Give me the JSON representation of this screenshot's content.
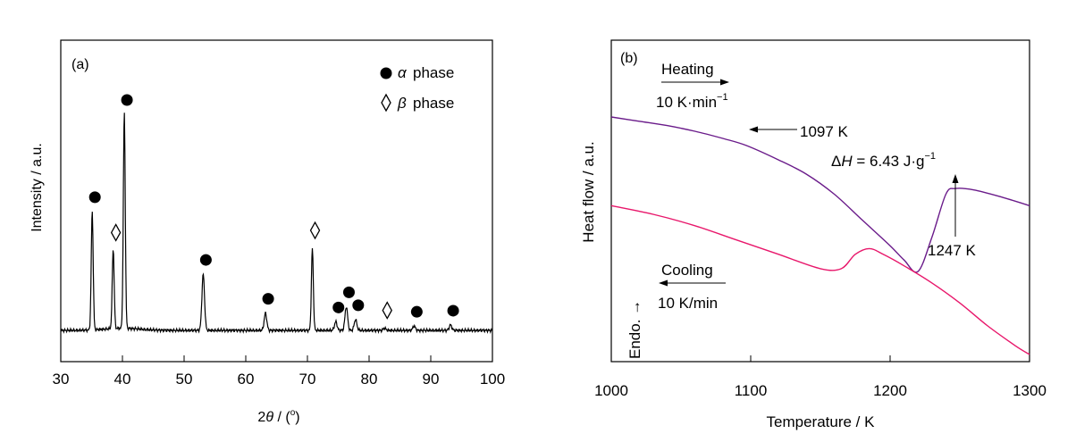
{
  "chart_data": [
    {
      "type": "line",
      "panel_label": "(a)",
      "xlabel_pre": "2",
      "xlabel_theta": "θ",
      "xlabel_post": " / (",
      "xlabel_deg": "o",
      "xlabel_close": ")",
      "ylabel": "Intensity / a.u.",
      "xlim": [
        30,
        100
      ],
      "xticks": [
        "30",
        "40",
        "50",
        "60",
        "70",
        "80",
        "90",
        "100"
      ],
      "yticks_labeled": false,
      "legend": [
        {
          "marker": "filled-circle",
          "symbol": "α",
          "text": "phase"
        },
        {
          "marker": "open-diamond",
          "symbol": "β",
          "text": "phase"
        }
      ],
      "series": [
        {
          "color": "#000000",
          "peaks": [
            {
              "x": 35.1,
              "height": 0.55,
              "phase": "alpha"
            },
            {
              "x": 38.5,
              "height": 0.37,
              "phase": "beta"
            },
            {
              "x": 40.3,
              "height": 1.0,
              "phase": "alpha"
            },
            {
              "x": 53.1,
              "height": 0.26,
              "phase": "alpha"
            },
            {
              "x": 63.2,
              "height": 0.08,
              "phase": "alpha"
            },
            {
              "x": 70.8,
              "height": 0.38,
              "phase": "beta"
            },
            {
              "x": 74.6,
              "height": 0.04,
              "phase": "alpha"
            },
            {
              "x": 76.3,
              "height": 0.11,
              "phase": "alpha"
            },
            {
              "x": 77.8,
              "height": 0.05,
              "phase": "alpha"
            },
            {
              "x": 82.5,
              "height": 0.01,
              "phase": "beta"
            },
            {
              "x": 87.3,
              "height": 0.02,
              "phase": "alpha"
            },
            {
              "x": 93.2,
              "height": 0.025,
              "phase": "alpha"
            }
          ]
        }
      ]
    },
    {
      "type": "line",
      "panel_label": "(b)",
      "xlabel": "Temperature / K",
      "ylabel": "Heat flow / a.u.",
      "xlim": [
        1000,
        1300
      ],
      "xticks": [
        "1000",
        "1100",
        "1200",
        "1300"
      ],
      "yticks_labeled": false,
      "series": [
        {
          "name": "Heating",
          "color": "#6a1b8a",
          "x": [
            1000,
            1020,
            1040,
            1060,
            1080,
            1097,
            1120,
            1140,
            1160,
            1180,
            1200,
            1210,
            1220,
            1230,
            1240,
            1247,
            1260,
            1280,
            1300
          ],
          "y": [
            0.83,
            0.815,
            0.8,
            0.78,
            0.755,
            0.73,
            0.68,
            0.63,
            0.56,
            0.47,
            0.38,
            0.33,
            0.29,
            0.41,
            0.56,
            0.58,
            0.575,
            0.55,
            0.52
          ]
        },
        {
          "name": "Cooling",
          "color": "#e8176b",
          "x": [
            1000,
            1030,
            1060,
            1090,
            1120,
            1150,
            1165,
            1175,
            1185,
            1195,
            1210,
            1230,
            1250,
            1270,
            1290,
            1300
          ],
          "y": [
            0.52,
            0.49,
            0.45,
            0.4,
            0.35,
            0.3,
            0.3,
            0.35,
            0.37,
            0.35,
            0.31,
            0.25,
            0.18,
            0.1,
            0.03,
            0.0
          ]
        }
      ],
      "annotations": {
        "heating_label": "Heating",
        "heating_rate_text": "10 K·min",
        "heating_rate_sup": "−1",
        "onset": "1097 K",
        "enthalpy_delta": "Δ",
        "enthalpy_H": "H",
        "enthalpy_value": " = 6.43 J·g",
        "enthalpy_sup": "−1",
        "peak": "1247 K",
        "cooling_label": "Cooling",
        "cooling_rate": "10 K/min",
        "endo": "Endo. →"
      }
    }
  ]
}
